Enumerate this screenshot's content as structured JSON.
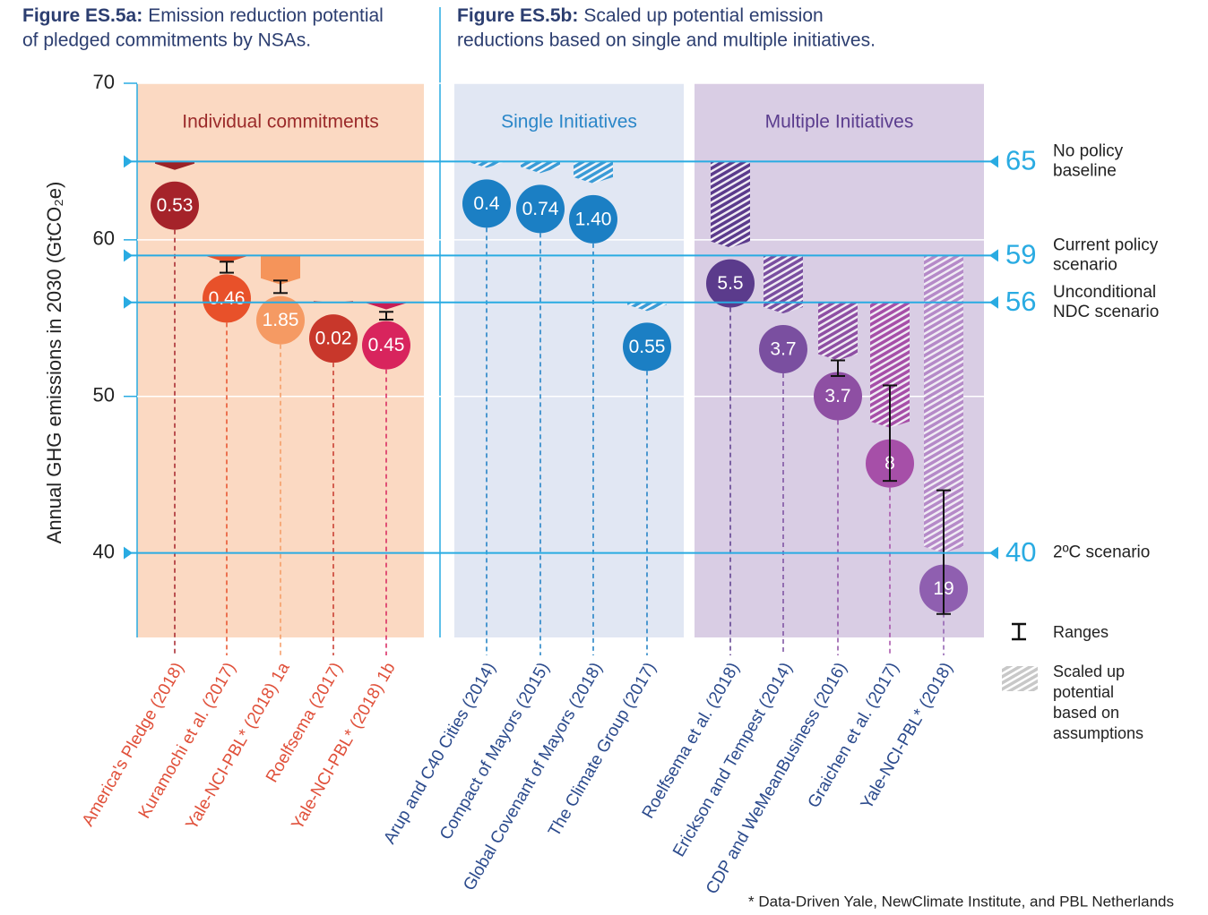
{
  "chart_data": {
    "type": "range_bar",
    "titles": [
      {
        "bold": "Figure ES.5a:",
        "lines": [
          "Emission reduction potential",
          "of pledged commitments by NSAs."
        ]
      },
      {
        "bold": "Figure ES.5b:",
        "lines": [
          "Scaled up potential emission",
          "reductions based on single and multiple initiatives."
        ]
      }
    ],
    "y_label": "Annual GHG emissions in 2030 (GtCO₂e)",
    "ylim": [
      34.6,
      70
    ],
    "yticks": [
      40,
      50,
      60,
      70
    ],
    "grid": true,
    "panels": [
      {
        "name": "Individual commitments",
        "color": "#fbd9c2",
        "text_color": "#9b2a2a"
      },
      {
        "name": "Single Initiatives",
        "color": "#e1e7f3",
        "text_color": "#2a86c8"
      },
      {
        "name": "Multiple Initiatives",
        "color": "#d9cde4",
        "text_color": "#5b3d8e"
      }
    ],
    "reference_lines": [
      {
        "value": 65,
        "label_lines": [
          "No policy",
          "baseline"
        ]
      },
      {
        "value": 59,
        "label_lines": [
          "Current policy",
          "scenario"
        ]
      },
      {
        "value": 56,
        "label_lines": [
          "Unconditional",
          "NDC scenario"
        ]
      },
      {
        "value": 40,
        "label_lines": [
          "2ºC scenario"
        ]
      }
    ],
    "reference_color": "#29abe2",
    "entries": [
      {
        "name": "America's Pledge (2018)",
        "from": 65,
        "value": 0.53,
        "hatched": false,
        "bar_color": "#9b2226",
        "circle_color": "#a5232a",
        "label_color": "#e0503a"
      },
      {
        "name": "Kuramochi et al. (2017)",
        "from": 59,
        "value": 0.46,
        "range": [
          58.6,
          57.9
        ],
        "hatched": false,
        "bar_color": "#e8512a",
        "circle_color": "#e8512a",
        "label_color": "#e0503a"
      },
      {
        "name": "Yale-NCI-PBL* (2018) 1a",
        "from": 59,
        "value": 1.85,
        "range": [
          57.4,
          56.6
        ],
        "hatched": false,
        "bar_color": "#f5945a",
        "circle_color": "#f59a63",
        "label_color": "#e0503a"
      },
      {
        "name": "Roelfsema (2017)",
        "from": 56,
        "value": 0.02,
        "hatched": false,
        "bar_color": "#c8372b",
        "circle_color": "#c8372b",
        "label_color": "#e0503a"
      },
      {
        "name": "Yale-NCI-PBL* (2018) 1b",
        "from": 56,
        "value": 0.45,
        "range": [
          55.4,
          54.9
        ],
        "hatched": false,
        "bar_color": "#c81e55",
        "circle_color": "#d8245d",
        "label_color": "#e0503a"
      },
      {
        "name": "Arup and C40 Cities (2014)",
        "from": 65,
        "value": 0.4,
        "hatched": true,
        "bar_color": "#3b9bd6",
        "circle_color": "#1b7fc4",
        "label_color": "#2b4a8c"
      },
      {
        "name": "Compact of Mayors (2015)",
        "from": 65,
        "value": 0.74,
        "hatched": true,
        "bar_color": "#3b9bd6",
        "circle_color": "#1b7fc4",
        "label_color": "#2b4a8c"
      },
      {
        "name": "Global Covenant of Mayors (2018)",
        "from": 65,
        "value": 1.4,
        "value_label": "1.40",
        "hatched": true,
        "bar_color": "#3b9bd6",
        "circle_color": "#1b7fc4",
        "label_color": "#2b4a8c"
      },
      {
        "name": "The Climate Group (2017)",
        "from": 56,
        "value": 0.55,
        "hatched": true,
        "bar_color": "#3b9bd6",
        "circle_color": "#1b7fc4",
        "label_color": "#2b4a8c"
      },
      {
        "name": "Roelfsema et al. (2018)",
        "from": 65,
        "value": 5.5,
        "hatched": true,
        "bar_color": "#5b3b8c",
        "circle_color": "#5b3b8c",
        "label_color": "#2b4a8c"
      },
      {
        "name": "Erickson and Tempest (2014)",
        "from": 59,
        "value": 3.7,
        "hatched": true,
        "bar_color": "#7a4fa0",
        "circle_color": "#7a4fa0",
        "label_color": "#2b4a8c"
      },
      {
        "name": "CDP and WeMeanBusiness (2016)",
        "from": 56,
        "value": 3.7,
        "range": [
          52.3,
          51.3
        ],
        "hatched": true,
        "bar_color": "#8e4fa3",
        "circle_color": "#8e4fa3",
        "label_color": "#2b4a8c"
      },
      {
        "name": "Graichen et al. (2017)",
        "from": 56,
        "value": 8,
        "range": [
          50.7,
          44.6
        ],
        "hatched": true,
        "bar_color": "#a64fa8",
        "circle_color": "#a64fa8",
        "label_color": "#2b4a8c"
      },
      {
        "name": "Yale-NCI-PBL* (2018)",
        "from": 59,
        "value": 19,
        "range": [
          44,
          36.1
        ],
        "hatched": true,
        "bar_color": "#b58ac8",
        "circle_color": "#8f5fb0",
        "label_color": "#2b4a8c"
      }
    ],
    "legend": {
      "ranges": "Ranges",
      "scaled_lines": [
        "Scaled up",
        "potential",
        "based on",
        "assumptions"
      ]
    },
    "footnote": "* Data-Driven Yale, NewClimate Institute, and PBL Netherlands"
  }
}
